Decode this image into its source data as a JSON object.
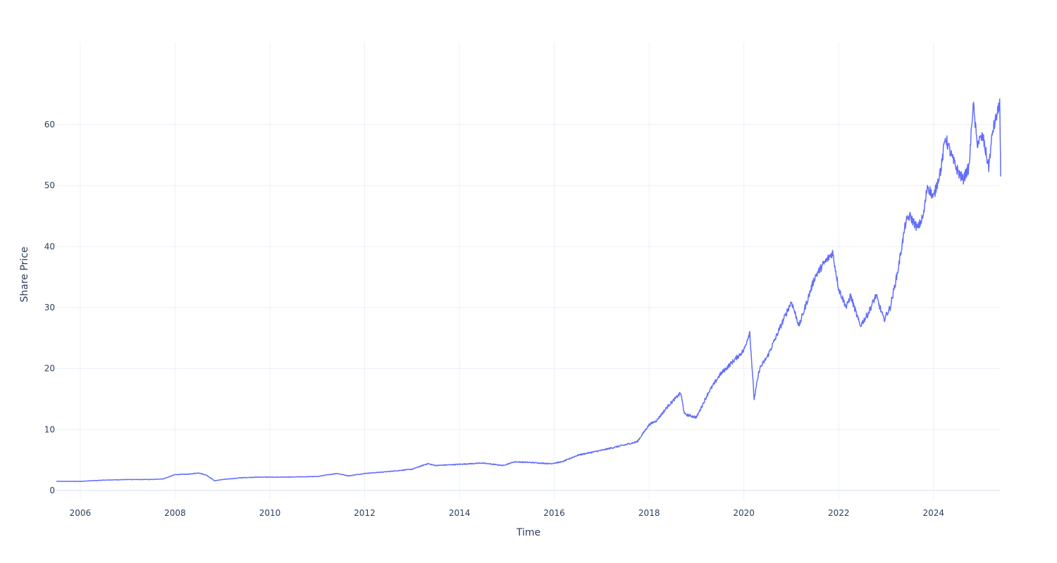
{
  "chart_data": {
    "type": "line",
    "title": "",
    "xlabel": "Time",
    "ylabel": "Share Price",
    "x_range": [
      "2005-07-01",
      "2025-06-01"
    ],
    "ylim": [
      -1.5,
      73.5
    ],
    "x_ticks": [
      "2006",
      "2008",
      "2010",
      "2012",
      "2014",
      "2016",
      "2018",
      "2020",
      "2022",
      "2024"
    ],
    "y_ticks": [
      "0",
      "10",
      "20",
      "30",
      "40",
      "50",
      "60"
    ],
    "grid": true,
    "legend": "none",
    "line_color": "#636efa",
    "grid_color": "#ebf0f8",
    "text_color": "#2a3f5f",
    "series": [
      {
        "x": [
          "2005-07-01",
          "2006-01-01",
          "2006-07-01",
          "2007-01-01",
          "2007-07-01",
          "2007-10-01",
          "2008-01-01",
          "2008-05-01",
          "2008-07-01",
          "2008-09-01",
          "2008-11-01",
          "2009-01-01",
          "2009-06-01",
          "2009-10-01",
          "2010-01-01",
          "2010-06-01",
          "2011-01-01",
          "2011-06-01",
          "2011-09-01",
          "2012-01-01",
          "2012-07-01",
          "2013-01-01",
          "2013-05-01",
          "2013-07-01",
          "2014-01-01",
          "2014-07-01",
          "2014-12-01",
          "2015-03-01",
          "2015-07-01",
          "2015-12-01",
          "2016-03-01",
          "2016-07-01",
          "2017-01-01",
          "2017-07-01",
          "2017-10-01",
          "2018-01-01",
          "2018-03-01",
          "2018-06-01",
          "2018-09-01",
          "2018-10-01",
          "2019-01-01",
          "2019-04-01",
          "2019-07-01",
          "2019-10-01",
          "2020-01-01",
          "2020-02-15",
          "2020-03-20",
          "2020-05-01",
          "2020-07-01",
          "2020-09-01",
          "2020-11-01",
          "2021-01-01",
          "2021-03-01",
          "2021-05-01",
          "2021-07-01",
          "2021-09-01",
          "2021-11-15",
          "2022-01-01",
          "2022-03-01",
          "2022-04-01",
          "2022-06-15",
          "2022-08-15",
          "2022-10-15",
          "2022-12-15",
          "2023-02-01",
          "2023-04-01",
          "2023-06-01",
          "2023-07-01",
          "2023-09-01",
          "2023-10-15",
          "2023-11-15",
          "2024-01-01",
          "2024-03-01",
          "2024-04-01",
          "2024-06-01",
          "2024-07-15",
          "2024-08-15",
          "2024-10-01",
          "2024-11-01",
          "2024-12-01",
          "2025-01-15",
          "2025-03-01",
          "2025-04-01",
          "2025-05-10",
          "2025-05-25",
          "2025-06-01"
        ],
        "y": [
          1.5,
          1.5,
          1.7,
          1.8,
          1.8,
          1.9,
          2.6,
          2.7,
          2.9,
          2.5,
          1.6,
          1.8,
          2.1,
          2.2,
          2.2,
          2.2,
          2.3,
          2.8,
          2.4,
          2.8,
          3.1,
          3.5,
          4.4,
          4.1,
          4.3,
          4.5,
          4.1,
          4.7,
          4.6,
          4.4,
          4.7,
          5.8,
          6.6,
          7.5,
          8.0,
          10.8,
          11.5,
          14.0,
          16.0,
          12.5,
          12.0,
          16.0,
          19.0,
          21.0,
          23.0,
          26.0,
          15.0,
          20.0,
          22.0,
          25.0,
          28.0,
          31.0,
          27.0,
          31.0,
          35.0,
          37.0,
          39.0,
          33.0,
          30.0,
          32.0,
          27.0,
          29.0,
          32.0,
          28.0,
          30.0,
          36.0,
          44.0,
          45.0,
          43.0,
          45.0,
          50.0,
          48.0,
          53.0,
          58.0,
          54.0,
          52.0,
          51.0,
          53.0,
          63.5,
          57.0,
          58.0,
          53.0,
          59.0,
          62.0,
          64.0,
          51.5
        ]
      }
    ]
  }
}
